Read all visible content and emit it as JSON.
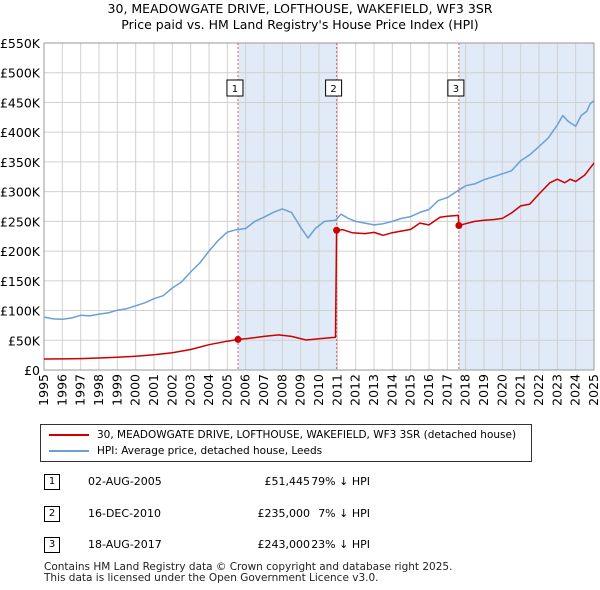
{
  "title_line1": "30, MEADOWGATE DRIVE, LOFTHOUSE, WAKEFIELD, WF3 3SR",
  "title_line2": "Price paid vs. HM Land Registry's House Price Index (HPI)",
  "colors": {
    "property": "#cc0000",
    "hpi": "#6a9fd8",
    "shade": "#dce6f6",
    "grid": "#d0d0d0",
    "marker_line": "#e06060"
  },
  "legend": {
    "property_label": "30, MEADOWGATE DRIVE, LOFTHOUSE, WAKEFIELD, WF3 3SR (detached house)",
    "hpi_label": "HPI: Average price, detached house, Leeds"
  },
  "transactions": [
    {
      "num": "1",
      "date": "02-AUG-2005",
      "price": "£51,445",
      "hpi": "79% ↓ HPI"
    },
    {
      "num": "2",
      "date": "16-DEC-2010",
      "price": "£235,000",
      "hpi": "7% ↓ HPI"
    },
    {
      "num": "3",
      "date": "18-AUG-2017",
      "price": "£243,000",
      "hpi": "23% ↓ HPI"
    }
  ],
  "footer_line1": "Contains HM Land Registry data © Crown copyright and database right 2025.",
  "footer_line2": "This data is licensed under the Open Government Licence v3.0.",
  "chart_data": {
    "type": "line",
    "title": "30, MEADOWGATE DRIVE, LOFTHOUSE, WAKEFIELD, WF3 3SR",
    "subtitle": "Price paid vs. HM Land Registry's House Price Index (HPI)",
    "xlim": [
      1995,
      2025
    ],
    "ylim": [
      0,
      550000
    ],
    "xticks": [
      1995,
      1996,
      1997,
      1998,
      1999,
      2000,
      2001,
      2002,
      2003,
      2004,
      2005,
      2006,
      2007,
      2008,
      2009,
      2010,
      2011,
      2012,
      2013,
      2014,
      2015,
      2016,
      2017,
      2018,
      2019,
      2020,
      2021,
      2022,
      2023,
      2024,
      2025
    ],
    "yticks": [
      0,
      50000,
      100000,
      150000,
      200000,
      250000,
      300000,
      350000,
      400000,
      450000,
      500000,
      550000
    ],
    "ytick_labels": [
      "£0",
      "£50K",
      "£100K",
      "£150K",
      "£200K",
      "£250K",
      "£300K",
      "£350K",
      "£400K",
      "£450K",
      "£500K",
      "£550K"
    ],
    "grid": true,
    "legend_position": "below",
    "shaded_ranges": [
      [
        2005.58,
        2010.96
      ],
      [
        2017.63,
        2025.0
      ]
    ],
    "markers": [
      {
        "label": "1",
        "x": 2005.58,
        "y": 51445
      },
      {
        "label": "2",
        "x": 2010.96,
        "y": 235000
      },
      {
        "label": "3",
        "x": 2017.63,
        "y": 243000
      }
    ],
    "series": [
      {
        "name": "30, MEADOWGATE DRIVE, LOFTHOUSE, WAKEFIELD, WF3 3SR (detached house)",
        "color": "#cc0000",
        "points": [
          [
            1995.0,
            18500
          ],
          [
            1996.0,
            18600
          ],
          [
            1997.0,
            19200
          ],
          [
            1998.0,
            20200
          ],
          [
            1999.0,
            21300
          ],
          [
            2000.0,
            23200
          ],
          [
            2001.0,
            25500
          ],
          [
            2002.0,
            29000
          ],
          [
            2003.0,
            34500
          ],
          [
            2004.0,
            42500
          ],
          [
            2005.0,
            48500
          ],
          [
            2005.58,
            51445
          ],
          [
            2006.0,
            52500
          ],
          [
            2007.0,
            56500
          ],
          [
            2007.8,
            59000
          ],
          [
            2008.5,
            56500
          ],
          [
            2009.3,
            50500
          ],
          [
            2010.0,
            52500
          ],
          [
            2010.9,
            55000
          ],
          [
            2010.96,
            235000
          ],
          [
            2011.3,
            236000
          ],
          [
            2011.8,
            231000
          ],
          [
            2012.5,
            229500
          ],
          [
            2013.0,
            231500
          ],
          [
            2013.5,
            226500
          ],
          [
            2014.0,
            231000
          ],
          [
            2015.0,
            236500
          ],
          [
            2015.5,
            247000
          ],
          [
            2016.0,
            244000
          ],
          [
            2016.6,
            257000
          ],
          [
            2017.0,
            258500
          ],
          [
            2017.6,
            260000
          ],
          [
            2017.63,
            243000
          ],
          [
            2018.0,
            246000
          ],
          [
            2018.5,
            250000
          ],
          [
            2019.0,
            252000
          ],
          [
            2019.5,
            253000
          ],
          [
            2020.0,
            255000
          ],
          [
            2020.5,
            264000
          ],
          [
            2021.0,
            276000
          ],
          [
            2021.5,
            279000
          ],
          [
            2022.0,
            296000
          ],
          [
            2022.6,
            315000
          ],
          [
            2023.0,
            321000
          ],
          [
            2023.4,
            315000
          ],
          [
            2023.7,
            321000
          ],
          [
            2024.0,
            317000
          ],
          [
            2024.5,
            328000
          ],
          [
            2025.0,
            348000
          ]
        ]
      },
      {
        "name": "HPI: Average price, detached house, Leeds",
        "color": "#6a9fd8",
        "points": [
          [
            1995.0,
            89000
          ],
          [
            1995.5,
            86000
          ],
          [
            1996.0,
            85500
          ],
          [
            1996.5,
            87500
          ],
          [
            1997.0,
            92000
          ],
          [
            1997.5,
            91000
          ],
          [
            1998.0,
            94000
          ],
          [
            1998.5,
            96000
          ],
          [
            1999.0,
            100500
          ],
          [
            1999.5,
            103000
          ],
          [
            2000.0,
            108000
          ],
          [
            2000.5,
            113000
          ],
          [
            2001.0,
            120000
          ],
          [
            2001.5,
            125000
          ],
          [
            2002.0,
            138000
          ],
          [
            2002.5,
            148000
          ],
          [
            2003.0,
            165000
          ],
          [
            2003.5,
            180000
          ],
          [
            2004.0,
            200000
          ],
          [
            2004.5,
            218000
          ],
          [
            2005.0,
            232000
          ],
          [
            2005.5,
            236000
          ],
          [
            2006.0,
            238000
          ],
          [
            2006.5,
            250000
          ],
          [
            2007.0,
            257000
          ],
          [
            2007.5,
            265000
          ],
          [
            2008.0,
            271000
          ],
          [
            2008.5,
            265000
          ],
          [
            2009.0,
            240000
          ],
          [
            2009.4,
            222000
          ],
          [
            2009.8,
            238000
          ],
          [
            2010.3,
            250000
          ],
          [
            2010.9,
            252000
          ],
          [
            2011.2,
            262000
          ],
          [
            2011.6,
            255000
          ],
          [
            2012.0,
            250000
          ],
          [
            2012.5,
            247000
          ],
          [
            2013.0,
            244000
          ],
          [
            2013.5,
            246000
          ],
          [
            2014.0,
            250000
          ],
          [
            2014.5,
            255000
          ],
          [
            2015.0,
            258000
          ],
          [
            2015.5,
            265000
          ],
          [
            2016.0,
            270000
          ],
          [
            2016.5,
            285000
          ],
          [
            2017.0,
            290000
          ],
          [
            2017.5,
            300000
          ],
          [
            2018.0,
            310000
          ],
          [
            2018.5,
            313000
          ],
          [
            2019.0,
            320000
          ],
          [
            2019.5,
            325000
          ],
          [
            2020.0,
            330000
          ],
          [
            2020.5,
            335000
          ],
          [
            2021.0,
            352000
          ],
          [
            2021.5,
            362000
          ],
          [
            2022.0,
            376000
          ],
          [
            2022.5,
            390000
          ],
          [
            2023.0,
            412000
          ],
          [
            2023.3,
            428000
          ],
          [
            2023.6,
            418000
          ],
          [
            2024.0,
            410000
          ],
          [
            2024.3,
            428000
          ],
          [
            2024.6,
            435000
          ],
          [
            2024.8,
            448000
          ],
          [
            2025.0,
            453000
          ]
        ]
      }
    ]
  }
}
